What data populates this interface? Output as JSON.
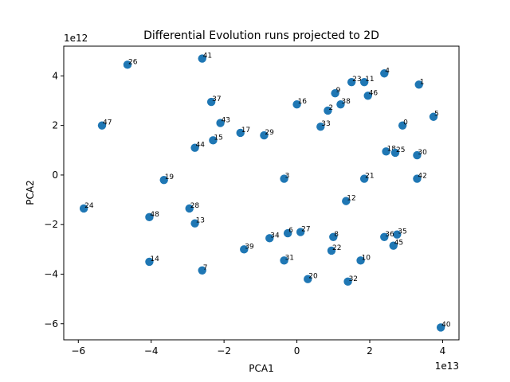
{
  "chart_data": {
    "type": "scatter",
    "title": "Differential Evolution runs projected to 2D",
    "xlabel": "PCA1",
    "ylabel": "PCA2",
    "x_offset_label": "1e13",
    "y_offset_label": "1e12",
    "xlim": [
      -6.4,
      4.45
    ],
    "ylim": [
      -6.65,
      5.2
    ],
    "xticks": [
      -6,
      -4,
      -2,
      0,
      2,
      4
    ],
    "yticks": [
      -6,
      -4,
      -2,
      0,
      2,
      4
    ],
    "xtick_labels": [
      "−6",
      "−4",
      "−2",
      "0",
      "2",
      "4"
    ],
    "ytick_labels": [
      "−6",
      "−4",
      "−2",
      "0",
      "2",
      "4"
    ],
    "grid": false,
    "marker_color": "#1f77b4",
    "points": [
      {
        "label": "0",
        "x": 2.9,
        "y": 2.0
      },
      {
        "label": "1",
        "x": 3.35,
        "y": 3.65
      },
      {
        "label": "2",
        "x": 0.85,
        "y": 2.6
      },
      {
        "label": "3",
        "x": -0.35,
        "y": -0.15
      },
      {
        "label": "4",
        "x": 2.4,
        "y": 4.1
      },
      {
        "label": "5",
        "x": 3.75,
        "y": 2.35
      },
      {
        "label": "6",
        "x": -0.25,
        "y": -2.35
      },
      {
        "label": "7",
        "x": -2.6,
        "y": -3.85
      },
      {
        "label": "8",
        "x": 1.0,
        "y": -2.5
      },
      {
        "label": "9",
        "x": 1.05,
        "y": 3.3
      },
      {
        "label": "10",
        "x": 1.75,
        "y": -3.45
      },
      {
        "label": "11",
        "x": 1.85,
        "y": 3.75
      },
      {
        "label": "12",
        "x": 1.35,
        "y": -1.05
      },
      {
        "label": "13",
        "x": -2.8,
        "y": -1.95
      },
      {
        "label": "14",
        "x": -4.05,
        "y": -3.5
      },
      {
        "label": "15",
        "x": -2.3,
        "y": 1.4
      },
      {
        "label": "16",
        "x": 0.0,
        "y": 2.85
      },
      {
        "label": "17",
        "x": -1.55,
        "y": 1.7
      },
      {
        "label": "18",
        "x": 2.45,
        "y": 0.95
      },
      {
        "label": "19",
        "x": -3.65,
        "y": -0.2
      },
      {
        "label": "20",
        "x": 0.3,
        "y": -4.2
      },
      {
        "label": "21",
        "x": 1.85,
        "y": -0.15
      },
      {
        "label": "22",
        "x": 0.95,
        "y": -3.05
      },
      {
        "label": "23",
        "x": 1.5,
        "y": 3.75
      },
      {
        "label": "24",
        "x": -5.85,
        "y": -1.35
      },
      {
        "label": "25",
        "x": 2.7,
        "y": 0.9
      },
      {
        "label": "26",
        "x": -4.65,
        "y": 4.45
      },
      {
        "label": "27",
        "x": 0.1,
        "y": -2.3
      },
      {
        "label": "28",
        "x": -2.95,
        "y": -1.35
      },
      {
        "label": "29",
        "x": -0.9,
        "y": 1.6
      },
      {
        "label": "30",
        "x": 3.3,
        "y": 0.8
      },
      {
        "label": "31",
        "x": -0.35,
        "y": -3.45
      },
      {
        "label": "32",
        "x": 1.4,
        "y": -4.3
      },
      {
        "label": "33",
        "x": 0.65,
        "y": 1.95
      },
      {
        "label": "34",
        "x": -0.75,
        "y": -2.55
      },
      {
        "label": "35",
        "x": 2.75,
        "y": -2.4
      },
      {
        "label": "36",
        "x": 2.4,
        "y": -2.5
      },
      {
        "label": "37",
        "x": -2.35,
        "y": 2.95
      },
      {
        "label": "38",
        "x": 1.2,
        "y": 2.85
      },
      {
        "label": "39",
        "x": -1.45,
        "y": -3.0
      },
      {
        "label": "40",
        "x": 3.95,
        "y": -6.15
      },
      {
        "label": "41",
        "x": -2.6,
        "y": 4.7
      },
      {
        "label": "42",
        "x": 3.3,
        "y": -0.15
      },
      {
        "label": "43",
        "x": -2.1,
        "y": 2.1
      },
      {
        "label": "44",
        "x": -2.8,
        "y": 1.1
      },
      {
        "label": "45",
        "x": 2.65,
        "y": -2.85
      },
      {
        "label": "46",
        "x": 1.95,
        "y": 3.2
      },
      {
        "label": "47",
        "x": -5.35,
        "y": 2.0
      },
      {
        "label": "48",
        "x": -4.05,
        "y": -1.7
      }
    ]
  }
}
